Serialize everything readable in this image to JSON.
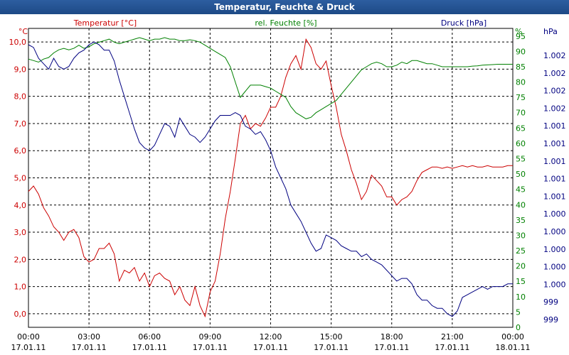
{
  "window_title": "Temperatur, Feuchte & Druck",
  "chart_data": {
    "type": "line",
    "title": "Temperatur, Feuchte & Druck",
    "x_ticks": [
      {
        "time": "00:00",
        "date": "17.01.11"
      },
      {
        "time": "03:00",
        "date": "17.01.11"
      },
      {
        "time": "06:00",
        "date": "17.01.11"
      },
      {
        "time": "09:00",
        "date": "17.01.11"
      },
      {
        "time": "12:00",
        "date": "17.01.11"
      },
      {
        "time": "15:00",
        "date": "17.01.11"
      },
      {
        "time": "18:00",
        "date": "17.01.11"
      },
      {
        "time": "21:00",
        "date": "17.01.11"
      },
      {
        "time": "00:00",
        "date": "18.01.11"
      }
    ],
    "x_range_hours": [
      0,
      24
    ],
    "grid": true,
    "axes": {
      "temperature": {
        "label": "Temperatur [°C]",
        "unit": "°C",
        "range": [
          -0.5,
          10.5
        ],
        "ticks": [
          "0,0",
          "1,0",
          "2,0",
          "3,0",
          "4,0",
          "5,0",
          "6,0",
          "7,0",
          "8,0",
          "9,0",
          "10,0"
        ],
        "color": "#cc0000"
      },
      "humidity": {
        "label": "rel. Feuchte [%]",
        "unit": "%",
        "range": [
          0,
          97.5
        ],
        "ticks": [
          "0",
          "5",
          "10",
          "15",
          "20",
          "25",
          "30",
          "35",
          "40",
          "45",
          "50",
          "55",
          "60",
          "65",
          "70",
          "75",
          "80",
          "85",
          "90",
          "95"
        ],
        "color": "#008000"
      },
      "pressure": {
        "label": "Druck [hPa]",
        "unit": "hPa",
        "ticks": [
          "999",
          "999",
          "1.000",
          "1.000",
          "1.000",
          "1.000",
          "1.000",
          "1.001",
          "1.001",
          "1.001",
          "1.001",
          "1.001",
          "1.002",
          "1.002",
          "1.002",
          "1.002"
        ],
        "color": "#000080"
      }
    },
    "series": [
      {
        "name": "Temperatur [°C]",
        "axis": "temperature",
        "color": "#cc0000",
        "points": [
          [
            0,
            4.5
          ],
          [
            0.25,
            4.7
          ],
          [
            0.5,
            4.4
          ],
          [
            0.75,
            3.9
          ],
          [
            1,
            3.6
          ],
          [
            1.25,
            3.2
          ],
          [
            1.5,
            3.0
          ],
          [
            1.75,
            2.7
          ],
          [
            2,
            3.0
          ],
          [
            2.25,
            3.1
          ],
          [
            2.5,
            2.8
          ],
          [
            2.75,
            2.1
          ],
          [
            3,
            1.9
          ],
          [
            3.25,
            2.0
          ],
          [
            3.5,
            2.4
          ],
          [
            3.75,
            2.4
          ],
          [
            4,
            2.6
          ],
          [
            4.25,
            2.2
          ],
          [
            4.5,
            1.2
          ],
          [
            4.75,
            1.6
          ],
          [
            5,
            1.5
          ],
          [
            5.25,
            1.7
          ],
          [
            5.5,
            1.2
          ],
          [
            5.75,
            1.5
          ],
          [
            6,
            1.0
          ],
          [
            6.25,
            1.4
          ],
          [
            6.5,
            1.5
          ],
          [
            6.75,
            1.3
          ],
          [
            7,
            1.2
          ],
          [
            7.25,
            0.7
          ],
          [
            7.5,
            1.0
          ],
          [
            7.75,
            0.5
          ],
          [
            8,
            0.3
          ],
          [
            8.25,
            1.0
          ],
          [
            8.5,
            0.3
          ],
          [
            8.75,
            -0.1
          ],
          [
            9,
            0.8
          ],
          [
            9.25,
            1.2
          ],
          [
            9.5,
            2.2
          ],
          [
            9.75,
            3.5
          ],
          [
            10,
            4.5
          ],
          [
            10.25,
            5.7
          ],
          [
            10.5,
            7.0
          ],
          [
            10.75,
            7.3
          ],
          [
            11,
            6.8
          ],
          [
            11.25,
            7.0
          ],
          [
            11.5,
            6.9
          ],
          [
            11.75,
            7.2
          ],
          [
            12,
            7.6
          ],
          [
            12.25,
            7.6
          ],
          [
            12.5,
            8.0
          ],
          [
            12.75,
            8.7
          ],
          [
            13,
            9.2
          ],
          [
            13.25,
            9.5
          ],
          [
            13.5,
            9.0
          ],
          [
            13.75,
            10.1
          ],
          [
            14,
            9.8
          ],
          [
            14.25,
            9.2
          ],
          [
            14.5,
            9.0
          ],
          [
            14.75,
            9.3
          ],
          [
            15,
            8.4
          ],
          [
            15.25,
            7.6
          ],
          [
            15.5,
            6.6
          ],
          [
            15.75,
            6.0
          ],
          [
            16,
            5.3
          ],
          [
            16.25,
            4.8
          ],
          [
            16.5,
            4.2
          ],
          [
            16.75,
            4.5
          ],
          [
            17,
            5.1
          ],
          [
            17.25,
            4.9
          ],
          [
            17.5,
            4.7
          ],
          [
            17.75,
            4.3
          ],
          [
            18,
            4.3
          ],
          [
            18.25,
            4.0
          ],
          [
            18.5,
            4.2
          ],
          [
            18.75,
            4.3
          ],
          [
            19,
            4.5
          ],
          [
            19.25,
            4.9
          ],
          [
            19.5,
            5.2
          ],
          [
            19.75,
            5.3
          ],
          [
            20,
            5.4
          ],
          [
            20.25,
            5.4
          ],
          [
            20.5,
            5.35
          ],
          [
            20.75,
            5.4
          ],
          [
            21,
            5.35
          ],
          [
            21.25,
            5.4
          ],
          [
            21.5,
            5.45
          ],
          [
            21.75,
            5.4
          ],
          [
            22,
            5.45
          ],
          [
            22.25,
            5.4
          ],
          [
            22.5,
            5.4
          ],
          [
            22.75,
            5.45
          ],
          [
            23,
            5.4
          ],
          [
            23.25,
            5.4
          ],
          [
            23.5,
            5.4
          ],
          [
            23.75,
            5.45
          ],
          [
            24,
            5.45
          ]
        ]
      },
      {
        "name": "rel. Feuchte [%]",
        "axis": "humidity",
        "color": "#008000",
        "points": [
          [
            0,
            87.5
          ],
          [
            0.25,
            87
          ],
          [
            0.5,
            86.5
          ],
          [
            0.75,
            87.5
          ],
          [
            1,
            88
          ],
          [
            1.25,
            89.5
          ],
          [
            1.5,
            90.5
          ],
          [
            1.75,
            91
          ],
          [
            2,
            90.5
          ],
          [
            2.25,
            91
          ],
          [
            2.5,
            92
          ],
          [
            2.75,
            91
          ],
          [
            3,
            91.5
          ],
          [
            3.25,
            92.5
          ],
          [
            3.5,
            93
          ],
          [
            3.75,
            93.5
          ],
          [
            4,
            94
          ],
          [
            4.25,
            93
          ],
          [
            4.5,
            92.5
          ],
          [
            4.75,
            93
          ],
          [
            5,
            93.5
          ],
          [
            5.25,
            94
          ],
          [
            5.5,
            94.5
          ],
          [
            5.75,
            94
          ],
          [
            6,
            93.5
          ],
          [
            6.25,
            94
          ],
          [
            6.5,
            94
          ],
          [
            6.75,
            94.5
          ],
          [
            7,
            94
          ],
          [
            7.25,
            94
          ],
          [
            7.5,
            93.5
          ],
          [
            7.75,
            93.5
          ],
          [
            8,
            93.8
          ],
          [
            8.25,
            93.5
          ],
          [
            8.5,
            93
          ],
          [
            8.75,
            92
          ],
          [
            9,
            91
          ],
          [
            9.25,
            90
          ],
          [
            9.5,
            89
          ],
          [
            9.75,
            88
          ],
          [
            10,
            85
          ],
          [
            10.25,
            80
          ],
          [
            10.5,
            75
          ],
          [
            10.75,
            77
          ],
          [
            11,
            79
          ],
          [
            11.25,
            79
          ],
          [
            11.5,
            79
          ],
          [
            11.75,
            78.5
          ],
          [
            12,
            78
          ],
          [
            12.25,
            77
          ],
          [
            12.5,
            76
          ],
          [
            12.75,
            75
          ],
          [
            13,
            72
          ],
          [
            13.25,
            70
          ],
          [
            13.5,
            69
          ],
          [
            13.75,
            68
          ],
          [
            14,
            68.5
          ],
          [
            14.25,
            70
          ],
          [
            14.5,
            71
          ],
          [
            14.75,
            72
          ],
          [
            15,
            73
          ],
          [
            15.25,
            74
          ],
          [
            15.5,
            76
          ],
          [
            15.75,
            78
          ],
          [
            16,
            80
          ],
          [
            16.25,
            82
          ],
          [
            16.5,
            84
          ],
          [
            16.75,
            85
          ],
          [
            17,
            86
          ],
          [
            17.25,
            86.5
          ],
          [
            17.5,
            86
          ],
          [
            17.75,
            85
          ],
          [
            18,
            85
          ],
          [
            18.25,
            85.5
          ],
          [
            18.5,
            86.5
          ],
          [
            18.75,
            86
          ],
          [
            19,
            87
          ],
          [
            19.25,
            87
          ],
          [
            19.5,
            86.5
          ],
          [
            19.75,
            86
          ],
          [
            20,
            86
          ],
          [
            20.25,
            85.5
          ],
          [
            20.5,
            85
          ],
          [
            20.75,
            85
          ],
          [
            21,
            85
          ],
          [
            21.25,
            85
          ],
          [
            21.5,
            85
          ],
          [
            21.75,
            85
          ],
          [
            22,
            85.2
          ],
          [
            22.25,
            85.3
          ],
          [
            22.5,
            85.5
          ],
          [
            22.75,
            85.6
          ],
          [
            23,
            85.7
          ],
          [
            23.25,
            85.8
          ],
          [
            23.5,
            85.8
          ],
          [
            23.75,
            85.8
          ],
          [
            24,
            85.8
          ]
        ]
      },
      {
        "name": "Druck [hPa]",
        "axis": "pressure",
        "color": "#000080",
        "points": [
          [
            0,
            9.9
          ],
          [
            0.25,
            9.8
          ],
          [
            0.5,
            9.4
          ],
          [
            0.75,
            9.2
          ],
          [
            1,
            9.0
          ],
          [
            1.25,
            9.4
          ],
          [
            1.5,
            9.1
          ],
          [
            1.75,
            9.0
          ],
          [
            2,
            9.1
          ],
          [
            2.25,
            9.4
          ],
          [
            2.5,
            9.6
          ],
          [
            2.75,
            9.7
          ],
          [
            3,
            9.9
          ],
          [
            3.25,
            10.0
          ],
          [
            3.5,
            9.9
          ],
          [
            3.75,
            9.7
          ],
          [
            4,
            9.7
          ],
          [
            4.25,
            9.3
          ],
          [
            4.5,
            8.6
          ],
          [
            4.75,
            8.0
          ],
          [
            5,
            7.4
          ],
          [
            5.25,
            6.8
          ],
          [
            5.5,
            6.3
          ],
          [
            5.75,
            6.1
          ],
          [
            6,
            6.0
          ],
          [
            6.25,
            6.2
          ],
          [
            6.5,
            6.6
          ],
          [
            6.75,
            7.0
          ],
          [
            7,
            6.9
          ],
          [
            7.25,
            6.5
          ],
          [
            7.5,
            7.2
          ],
          [
            7.75,
            6.9
          ],
          [
            8,
            6.6
          ],
          [
            8.25,
            6.5
          ],
          [
            8.5,
            6.3
          ],
          [
            8.75,
            6.5
          ],
          [
            9,
            6.8
          ],
          [
            9.25,
            7.1
          ],
          [
            9.5,
            7.3
          ],
          [
            9.75,
            7.3
          ],
          [
            10,
            7.3
          ],
          [
            10.25,
            7.4
          ],
          [
            10.5,
            7.3
          ],
          [
            10.75,
            6.9
          ],
          [
            11,
            6.8
          ],
          [
            11.25,
            6.6
          ],
          [
            11.5,
            6.7
          ],
          [
            11.75,
            6.4
          ],
          [
            12,
            6.0
          ],
          [
            12.25,
            5.4
          ],
          [
            12.5,
            5.0
          ],
          [
            12.75,
            4.6
          ],
          [
            13,
            4.0
          ],
          [
            13.25,
            3.7
          ],
          [
            13.5,
            3.4
          ],
          [
            13.75,
            3.0
          ],
          [
            14,
            2.6
          ],
          [
            14.25,
            2.3
          ],
          [
            14.5,
            2.4
          ],
          [
            14.75,
            2.9
          ],
          [
            15,
            2.8
          ],
          [
            15.25,
            2.7
          ],
          [
            15.5,
            2.5
          ],
          [
            15.75,
            2.4
          ],
          [
            16,
            2.3
          ],
          [
            16.25,
            2.3
          ],
          [
            16.5,
            2.1
          ],
          [
            16.75,
            2.2
          ],
          [
            17,
            2.0
          ],
          [
            17.25,
            1.9
          ],
          [
            17.5,
            1.8
          ],
          [
            17.75,
            1.6
          ],
          [
            18,
            1.4
          ],
          [
            18.25,
            1.2
          ],
          [
            18.5,
            1.3
          ],
          [
            18.75,
            1.3
          ],
          [
            19,
            1.1
          ],
          [
            19.25,
            0.7
          ],
          [
            19.5,
            0.5
          ],
          [
            19.75,
            0.5
          ],
          [
            20,
            0.3
          ],
          [
            20.25,
            0.2
          ],
          [
            20.5,
            0.2
          ],
          [
            20.75,
            0.0
          ],
          [
            21,
            -0.1
          ],
          [
            21.25,
            0.1
          ],
          [
            21.5,
            0.6
          ],
          [
            21.75,
            0.7
          ],
          [
            22,
            0.8
          ],
          [
            22.25,
            0.9
          ],
          [
            22.5,
            1.0
          ],
          [
            22.75,
            0.9
          ],
          [
            23,
            1.0
          ],
          [
            23.25,
            1.0
          ],
          [
            23.5,
            1.0
          ],
          [
            23.75,
            1.1
          ],
          [
            24,
            1.1
          ]
        ]
      }
    ]
  }
}
